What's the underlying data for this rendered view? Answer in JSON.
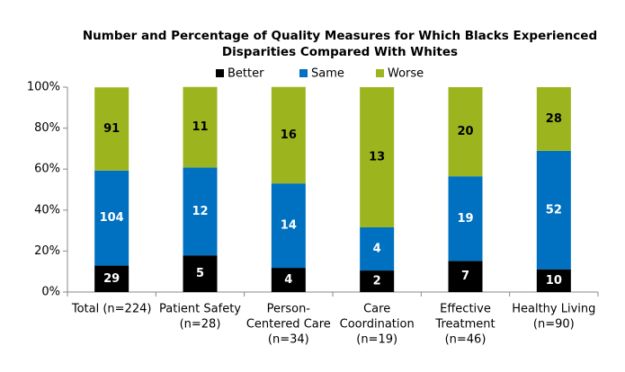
{
  "chart_data": {
    "type": "stacked_bar",
    "title": [
      "Number and Percentage of Quality Measures for Which Blacks Experienced",
      "Disparities Compared With Whites"
    ],
    "categories": [
      [
        "Total (n=224)"
      ],
      [
        "Patient Safety",
        "(n=28)"
      ],
      [
        "Person-",
        "Centered Care",
        "(n=34)"
      ],
      [
        "Care",
        "Coordination",
        "(n=19)"
      ],
      [
        "Effective",
        "Treatment",
        "(n=46)"
      ],
      [
        "Healthy Living",
        "(n=90)"
      ]
    ],
    "series": [
      {
        "name": "Better",
        "color": "#000000",
        "label_color": "#ffffff",
        "values": [
          12.9,
          17.9,
          11.8,
          10.5,
          15.2,
          11.1
        ],
        "counts": [
          29,
          5,
          4,
          2,
          7,
          10
        ]
      },
      {
        "name": "Same",
        "color": "#0070c0",
        "label_color": "#ffffff",
        "values": [
          46.4,
          42.9,
          41.2,
          21.1,
          41.3,
          57.8
        ],
        "counts": [
          104,
          12,
          14,
          4,
          19,
          52
        ]
      },
      {
        "name": "Worse",
        "color": "#9cb51e",
        "label_color": "#000000",
        "values": [
          40.6,
          39.3,
          47.1,
          68.4,
          43.5,
          31.1
        ],
        "counts": [
          91,
          11,
          16,
          13,
          20,
          28
        ]
      }
    ],
    "ylim": [
      0,
      100
    ],
    "yticks": [
      {
        "value": 0,
        "label": "0%"
      },
      {
        "value": 20,
        "label": "20%"
      },
      {
        "value": 40,
        "label": "40%"
      },
      {
        "value": 60,
        "label": "60%"
      },
      {
        "value": 80,
        "label": "80%"
      },
      {
        "value": 100,
        "label": "100%"
      }
    ],
    "grid": false
  }
}
